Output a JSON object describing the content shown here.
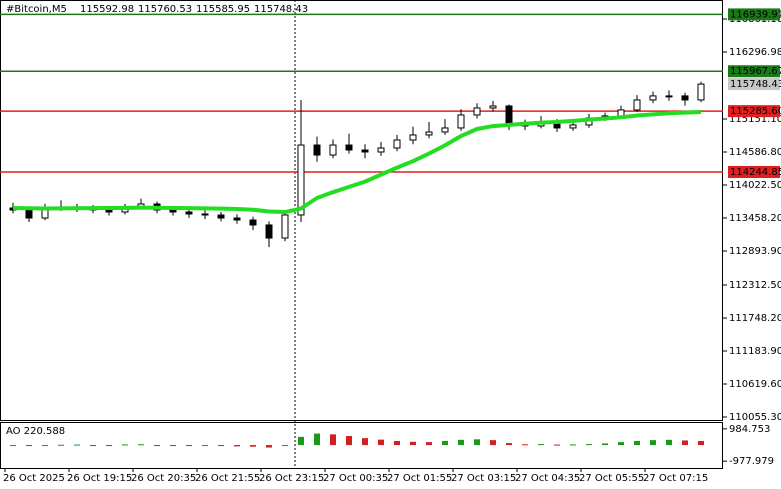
{
  "chart_data": {
    "type": "candlestick",
    "title": "#Bitcoin,M5",
    "header_values": [
      115592.98,
      115760.53,
      115585.95,
      115748.43
    ],
    "categories": [
      "26 Oct 2025",
      null,
      null,
      null,
      "26 Oct 19:15",
      null,
      null,
      null,
      "26 Oct 20:35",
      null,
      null,
      null,
      "26 Oct 21:55",
      null,
      null,
      null,
      "26 Oct 23:15",
      null,
      null,
      null,
      "27 Oct 00:35",
      null,
      null,
      null,
      "27 Oct 01:55",
      null,
      null,
      null,
      "27 Oct 03:15",
      null,
      null,
      null,
      "27 Oct 04:35",
      null,
      null,
      null,
      "27 Oct 05:55",
      null,
      null,
      null,
      "27 Oct 07:15",
      null,
      null,
      null
    ],
    "candles": [
      [
        113629,
        113720,
        113540,
        113595
      ],
      [
        113595,
        113640,
        113390,
        113458
      ],
      [
        113458,
        113700,
        113420,
        113629
      ],
      [
        113629,
        113760,
        113580,
        113646
      ],
      [
        113646,
        113700,
        113560,
        113612
      ],
      [
        113612,
        113680,
        113540,
        113595
      ],
      [
        113595,
        113650,
        113500,
        113561
      ],
      [
        113561,
        113700,
        113520,
        113629
      ],
      [
        113629,
        113790,
        113600,
        113698
      ],
      [
        113698,
        113740,
        113540,
        113595
      ],
      [
        113595,
        113640,
        113500,
        113561
      ],
      [
        113561,
        113610,
        113460,
        113527
      ],
      [
        113527,
        113600,
        113440,
        113510
      ],
      [
        113510,
        113560,
        113400,
        113458
      ],
      [
        113458,
        113520,
        113360,
        113424
      ],
      [
        113424,
        113480,
        113250,
        113339
      ],
      [
        113339,
        113400,
        112960,
        113116
      ],
      [
        113116,
        113560,
        113060,
        113510
      ],
      [
        113510,
        115477,
        113390,
        114706
      ],
      [
        114706,
        114850,
        114420,
        114535
      ],
      [
        114535,
        114800,
        114480,
        114706
      ],
      [
        114706,
        114900,
        114560,
        114621
      ],
      [
        114621,
        114720,
        114480,
        114587
      ],
      [
        114587,
        114760,
        114520,
        114655
      ],
      [
        114655,
        114880,
        114600,
        114792
      ],
      [
        114792,
        115020,
        114720,
        114878
      ],
      [
        114878,
        115100,
        114820,
        114929
      ],
      [
        114929,
        115150,
        114880,
        114998
      ],
      [
        114998,
        115320,
        114950,
        115220
      ],
      [
        115220,
        115420,
        115160,
        115340
      ],
      [
        115340,
        115460,
        115280,
        115374
      ],
      [
        115374,
        115400,
        114960,
        115049
      ],
      [
        115049,
        115140,
        114960,
        115032
      ],
      [
        115032,
        115200,
        114990,
        115101
      ],
      [
        115101,
        115150,
        114930,
        114998
      ],
      [
        114998,
        115110,
        114950,
        115049
      ],
      [
        115049,
        115240,
        115000,
        115169
      ],
      [
        115169,
        115260,
        115120,
        115203
      ],
      [
        115203,
        115380,
        115160,
        115306
      ],
      [
        115306,
        115560,
        115270,
        115477
      ],
      [
        115477,
        115620,
        115420,
        115546
      ],
      [
        115546,
        115640,
        115460,
        115546
      ],
      [
        115546,
        115600,
        115380,
        115477
      ],
      [
        115477,
        115790,
        115440,
        115748
      ]
    ],
    "ma_color": "#22dd22",
    "ma": [
      113630,
      113625,
      113620,
      113622,
      113625,
      113628,
      113630,
      113632,
      113635,
      113634,
      113630,
      113626,
      113622,
      113618,
      113612,
      113600,
      113570,
      113560,
      113620,
      113800,
      113900,
      113990,
      114080,
      114200,
      114320,
      114430,
      114560,
      114700,
      114860,
      114980,
      115030,
      115050,
      115070,
      115090,
      115100,
      115120,
      115140,
      115160,
      115180,
      115210,
      115230,
      115250,
      115260,
      115270
    ],
    "ylim": [
      110004,
      117186
    ],
    "yticks": [
      {
        "value": 116861.1,
        "label": "116861.10"
      },
      {
        "value": 116296.98,
        "label": "116296.98"
      },
      {
        "value": 115151.1,
        "label": "115151.10"
      },
      {
        "value": 114586.8,
        "label": "114586.80"
      },
      {
        "value": 114022.5,
        "label": "114022.50"
      },
      {
        "value": 113458.2,
        "label": "113458.20"
      },
      {
        "value": 112893.9,
        "label": "112893.90"
      },
      {
        "value": 112312.5,
        "label": "112312.50"
      },
      {
        "value": 111748.2,
        "label": "111748.20"
      },
      {
        "value": 111183.9,
        "label": "111183.90"
      },
      {
        "value": 110619.6,
        "label": "110619.60"
      },
      {
        "value": 110055.3,
        "label": "110055.30"
      }
    ],
    "levels": [
      {
        "value": 116939.91,
        "label": "116939.91",
        "color": "#1a7a1a"
      },
      {
        "value": 115967.67,
        "label": "115967.67",
        "color": "#1a7a1a"
      },
      {
        "value": 115285.6,
        "label": "115285.60",
        "color": "#e02020"
      },
      {
        "value": 114244.85,
        "label": "114244.85",
        "color": "#e02020"
      }
    ],
    "current_price": {
      "value": 115748.43,
      "label": "115748.43"
    },
    "ao": {
      "label": "AO 220.588",
      "values": [
        -40,
        -60,
        -30,
        20,
        30,
        -20,
        -30,
        40,
        50,
        -20,
        -40,
        -50,
        -30,
        -60,
        -80,
        -100,
        -150,
        -60,
        500,
        700,
        650,
        550,
        420,
        330,
        250,
        200,
        180,
        250,
        320,
        350,
        300,
        120,
        50,
        60,
        30,
        40,
        60,
        100,
        180,
        250,
        300,
        320,
        280,
        250
      ],
      "ylim": [
        -1394,
        1342
      ],
      "yticks": [
        984.753,
        -977.979
      ]
    }
  }
}
